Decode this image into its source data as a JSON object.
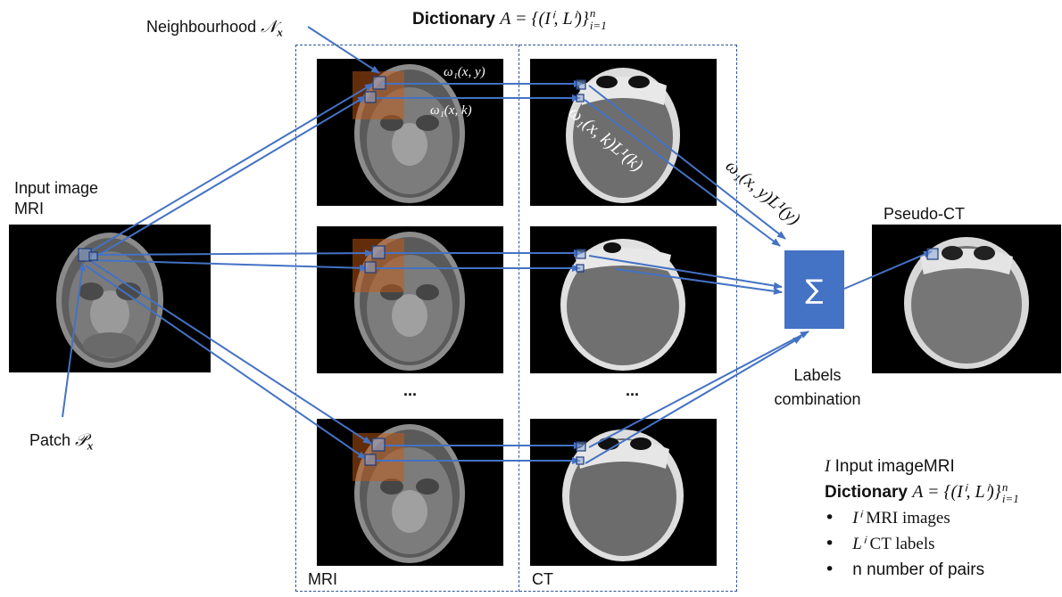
{
  "labels": {
    "neighbourhood_text": "Neighbourhood",
    "neighbourhood_symbol": "𝒩",
    "neighbourhood_sub": "x",
    "dictionary_word": "Dictionary",
    "dictionary_formula": "A = {(Iⁱ, Lⁱ)}",
    "dictionary_sup": "n",
    "dictionary_sub": "i=1",
    "input_image_line1": "Input image",
    "input_image_line2": "MRI",
    "patch_text": "Patch",
    "patch_symbol": "𝒫",
    "patch_sub": "x",
    "mri_column": "MRI",
    "ct_column": "CT",
    "ellipsis_mri": "...",
    "ellipsis_ct": "...",
    "pseudo_ct": "Pseudo-CT",
    "sum_symbol": "∑",
    "labels_combination_line1": "Labels",
    "labels_combination_line2": "combination"
  },
  "weights": {
    "w1_xy": "ω₁(x, y)",
    "w1_xk": "ω₁(x, k)",
    "w1_xk_label": "ω₁(x, k)L¹(k)",
    "w1_xy_label": "ω₁(x, y)L¹(y)"
  },
  "legend": {
    "line1_symbol": "I",
    "line1_text": "Input imageMRI",
    "line2_word": "Dictionary",
    "line2_formula": "A = {(Iⁱ, Lⁱ)}",
    "line2_sup": "n",
    "line2_sub": "i=1",
    "bullets": [
      {
        "symbol": "Iⁱ",
        "text": "MRI images"
      },
      {
        "symbol": "Lⁱ",
        "text": "CT labels"
      },
      {
        "symbol": "",
        "text": "n number of pairs"
      }
    ]
  },
  "colors": {
    "arrow": "#4472c4",
    "sum_box": "#4472c4",
    "neighbourhood_overlay": "#c55a11",
    "dashed_border": "#2e5597"
  }
}
